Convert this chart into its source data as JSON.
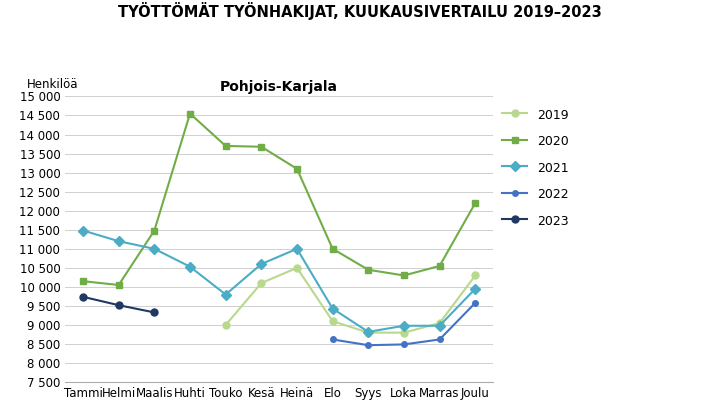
{
  "title": "TYÖTTÖMÄT TYÖNHAKIJAT, KUUKAUSIVERTAILU 2019–2023",
  "subtitle": "Pohjois-Karjala",
  "ylabel": "Henkilöä",
  "months": [
    "Tammi",
    "Helmi",
    "Maalis",
    "Huhti",
    "Touko",
    "Kesä",
    "Heinä",
    "Elo",
    "Syys",
    "Loka",
    "Marras",
    "Joulu"
  ],
  "series": [
    {
      "label": "2019",
      "color": "#b8d98d",
      "marker": "o",
      "markersize": 5,
      "linewidth": 1.5,
      "data": [
        null,
        null,
        null,
        null,
        9000,
        10100,
        10500,
        9100,
        8800,
        8800,
        9050,
        10300
      ]
    },
    {
      "label": "2020",
      "color": "#70ad47",
      "marker": "s",
      "markersize": 5,
      "linewidth": 1.5,
      "data": [
        10150,
        10050,
        11480,
        14550,
        13700,
        13680,
        13100,
        11000,
        10450,
        10300,
        10550,
        12200
      ]
    },
    {
      "label": "2021",
      "color": "#4bacc6",
      "marker": "D",
      "markersize": 5,
      "linewidth": 1.5,
      "data": [
        11480,
        11200,
        11000,
        10530,
        9800,
        10600,
        11000,
        9430,
        8820,
        8980,
        8980,
        9950
      ]
    },
    {
      "label": "2022",
      "color": "#4472c4",
      "marker": "o",
      "markersize": 4,
      "linewidth": 1.5,
      "data": [
        null,
        null,
        null,
        null,
        null,
        null,
        null,
        8620,
        8470,
        8490,
        8620,
        9580
      ]
    },
    {
      "label": "2023",
      "color": "#1f3864",
      "marker": "o",
      "markersize": 5,
      "linewidth": 1.5,
      "data": [
        9740,
        9520,
        9330,
        null,
        null,
        null,
        null,
        null,
        null,
        null,
        null,
        null
      ]
    }
  ],
  "ylim": [
    7500,
    15000
  ],
  "yticks": [
    7500,
    8000,
    8500,
    9000,
    9500,
    10000,
    10500,
    11000,
    11500,
    12000,
    12500,
    13000,
    13500,
    14000,
    14500,
    15000
  ],
  "background_color": "#ffffff",
  "plot_bg_color": "#ffffff"
}
